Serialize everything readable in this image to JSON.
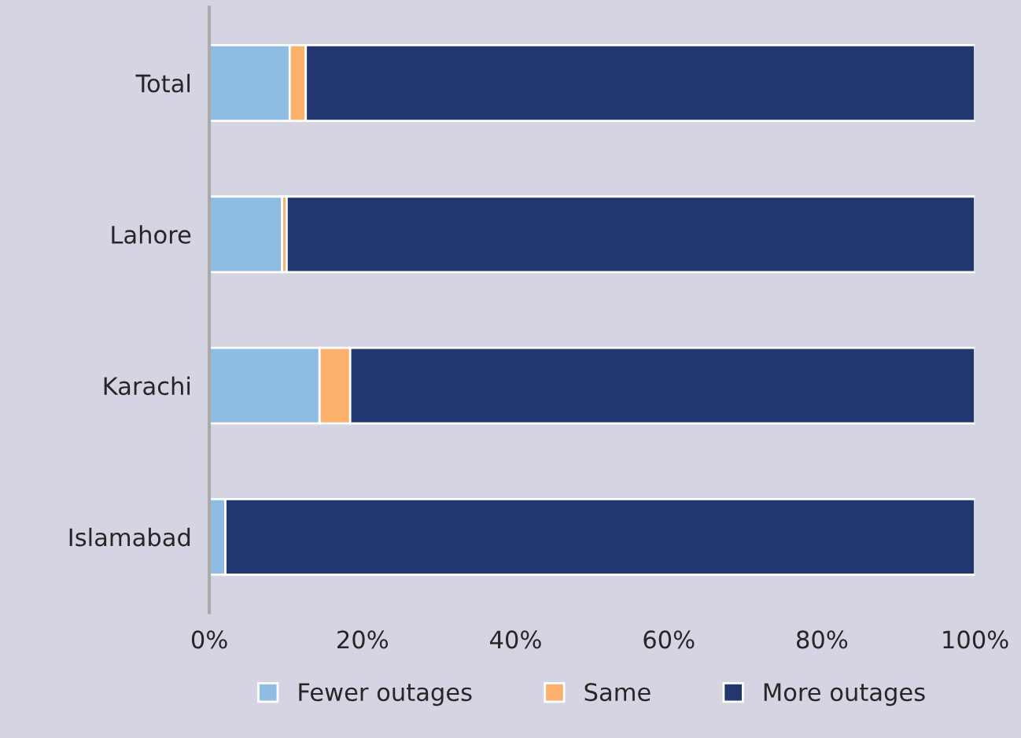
{
  "chart_data": {
    "type": "bar",
    "orientation": "horizontal",
    "stacked": true,
    "categories": [
      "Total",
      "Lahore",
      "Karachi",
      "Islamabad"
    ],
    "series": [
      {
        "name": "Fewer outages",
        "color": "#8fbce2",
        "values": [
          10.5,
          9.5,
          14.4,
          2.1
        ]
      },
      {
        "name": "Same",
        "color": "#fbb16b",
        "values": [
          2.1,
          0.6,
          4.0,
          0
        ]
      },
      {
        "name": "More outages",
        "color": "#22376f",
        "values": [
          87.4,
          89.9,
          81.6,
          97.9
        ]
      }
    ],
    "xlim": [
      0,
      100
    ],
    "xticks": [
      {
        "value": 0,
        "label": "0%"
      },
      {
        "value": 20,
        "label": "20%"
      },
      {
        "value": 40,
        "label": "40%"
      },
      {
        "value": 60,
        "label": "60%"
      },
      {
        "value": 80,
        "label": "80%"
      },
      {
        "value": 100,
        "label": "100%"
      }
    ],
    "grid": false,
    "legend": "bottom"
  }
}
